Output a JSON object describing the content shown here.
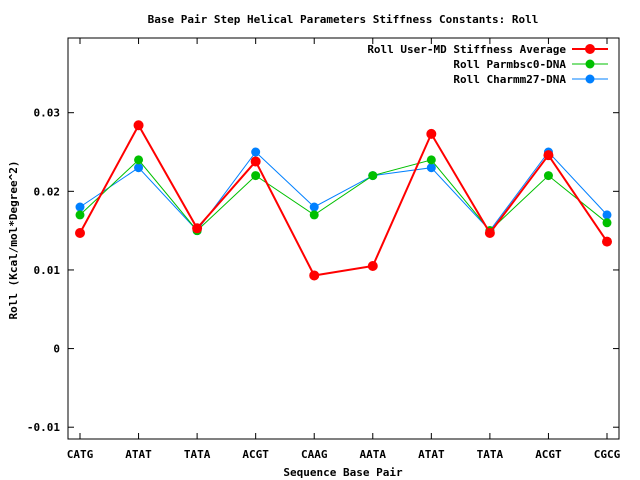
{
  "chart_data": {
    "type": "line",
    "title": "Base Pair Step Helical Parameters Stiffness Constants: Roll",
    "xlabel": "Sequence Base Pair",
    "ylabel": "Roll (Kcal/mol*Degree^2)",
    "categories": [
      "CATG",
      "ATAT",
      "TATA",
      "ACGT",
      "CAAG",
      "AATA",
      "ATAT",
      "TATA",
      "ACGT",
      "CGCG"
    ],
    "ylim": [
      -0.0115,
      0.0395
    ],
    "yticks": [
      -0.01,
      0,
      0.01,
      0.02,
      0.03
    ],
    "ytick_labels": [
      "-0.01",
      "0",
      "0.01",
      "0.02",
      "0.03"
    ],
    "grid": false,
    "legend_position": "top-right",
    "series": [
      {
        "name": "Roll User-MD Stiffness Average",
        "color": "#ff0000",
        "values": [
          0.0147,
          0.0284,
          0.0153,
          0.0238,
          0.0093,
          0.0105,
          0.0273,
          0.0147,
          0.0246,
          0.0136
        ]
      },
      {
        "name": "Roll Parmbsc0-DNA",
        "color": "#00c000",
        "values": [
          0.017,
          0.024,
          0.015,
          0.022,
          0.017,
          0.022,
          0.024,
          0.015,
          0.022,
          0.016
        ]
      },
      {
        "name": "Roll Charmm27-DNA",
        "color": "#0080ff",
        "values": [
          0.018,
          0.023,
          0.015,
          0.025,
          0.018,
          0.022,
          0.023,
          0.015,
          0.025,
          0.017
        ]
      }
    ]
  }
}
